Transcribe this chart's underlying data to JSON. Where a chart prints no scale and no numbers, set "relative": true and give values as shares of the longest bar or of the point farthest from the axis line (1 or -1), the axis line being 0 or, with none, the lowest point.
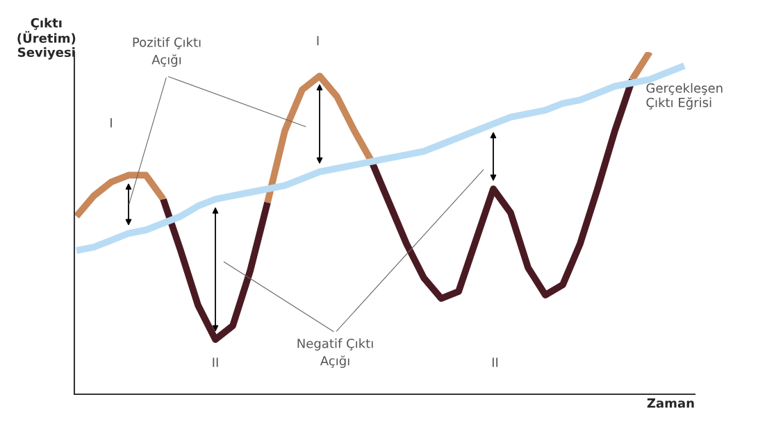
{
  "chart_data": {
    "type": "line",
    "relative": true,
    "legend": false,
    "grid": false,
    "tick_labels": false,
    "xlabel": "Zaman",
    "ylabel": "Çıktı\n(Üretim)\nSeviyesi",
    "categories": [
      null,
      null,
      null,
      null,
      null,
      null,
      null,
      null,
      null,
      null,
      null,
      null,
      null,
      null,
      null,
      null,
      null,
      null,
      null,
      null,
      null,
      null,
      null,
      null,
      null,
      null,
      null,
      null,
      null,
      null,
      null,
      null,
      null,
      null,
      null,
      null
    ],
    "series": [
      {
        "color": "#c8885a",
        "values": [
          0.52,
          0.58,
          0.62,
          0.64,
          0.64,
          0.57,
          null,
          null,
          null,
          null,
          null,
          0.56,
          0.77,
          0.89,
          0.93,
          0.87,
          0.77,
          0.68,
          null,
          null,
          null,
          null,
          null,
          null,
          null,
          null,
          null,
          null,
          null,
          null,
          null,
          null,
          0.92,
          1.0,
          null,
          null
        ]
      },
      {
        "color": "#4a1a22",
        "values": [
          null,
          null,
          null,
          null,
          null,
          0.57,
          0.42,
          0.26,
          0.16,
          0.2,
          0.36,
          0.56,
          null,
          null,
          null,
          null,
          null,
          0.68,
          0.56,
          0.44,
          0.34,
          0.28,
          0.3,
          0.45,
          0.6,
          0.53,
          0.37,
          0.29,
          0.32,
          0.44,
          0.6,
          0.77,
          0.92,
          null,
          null,
          null
        ]
      },
      {
        "name": "Gerçekleşen\nÇıktı Eğrisi",
        "color": "#b9dcf5",
        "values": [
          0.42,
          0.43,
          0.45,
          0.47,
          0.48,
          0.5,
          0.52,
          0.55,
          0.57,
          0.58,
          0.59,
          0.6,
          0.61,
          0.63,
          0.65,
          0.66,
          0.67,
          0.68,
          0.69,
          0.7,
          0.71,
          0.73,
          0.75,
          0.77,
          0.79,
          0.81,
          0.82,
          0.83,
          0.85,
          0.86,
          0.88,
          0.9,
          0.91,
          0.92,
          0.94,
          0.96
        ]
      }
    ],
    "annotations": [
      "I",
      "Pozitif Çıktı\nAçığı",
      "I",
      "II",
      "Negatif Çıktı\nAçığı",
      "II"
    ]
  }
}
